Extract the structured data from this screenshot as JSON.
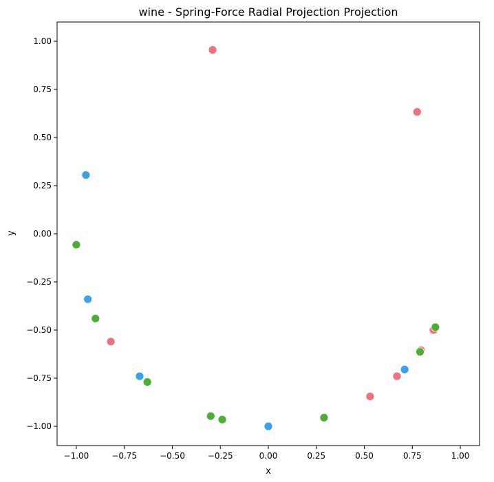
{
  "chart_data": {
    "type": "scatter",
    "title": "wine - Spring-Force Radial Projection Projection",
    "xlabel": "x",
    "ylabel": "y",
    "xlim": [
      -1.1,
      1.1
    ],
    "ylim": [
      -1.1,
      1.1
    ],
    "xticks": [
      "-1.00",
      "-0.75",
      "-0.50",
      "-0.25",
      "0.00",
      "0.25",
      "0.50",
      "0.75",
      "1.00"
    ],
    "yticks": [
      "-1.00",
      "-0.75",
      "-0.50",
      "-0.25",
      "0.00",
      "0.25",
      "0.50",
      "0.75",
      "1.00"
    ],
    "grid": false,
    "series": [
      {
        "color": "#f0707e",
        "points": [
          [
            -0.29,
            0.955
          ],
          [
            0.775,
            0.633
          ],
          [
            -0.82,
            -0.56
          ],
          [
            0.53,
            -0.845
          ],
          [
            0.67,
            -0.74
          ],
          [
            0.79,
            -0.61
          ],
          [
            0.795,
            -0.605
          ],
          [
            0.86,
            -0.5
          ]
        ]
      },
      {
        "color": "#3ca2e8",
        "points": [
          [
            -0.95,
            0.305
          ],
          [
            -0.94,
            -0.34
          ],
          [
            -0.67,
            -0.74
          ],
          [
            0.0,
            -1.0
          ],
          [
            0.71,
            -0.705
          ]
        ]
      },
      {
        "color": "#4caf34",
        "points": [
          [
            -1.0,
            -0.057
          ],
          [
            -0.9,
            -0.44
          ],
          [
            -0.63,
            -0.77
          ],
          [
            -0.3,
            -0.947
          ],
          [
            -0.24,
            -0.965
          ],
          [
            0.29,
            -0.955
          ],
          [
            0.79,
            -0.613
          ],
          [
            0.87,
            -0.485
          ]
        ]
      }
    ]
  }
}
